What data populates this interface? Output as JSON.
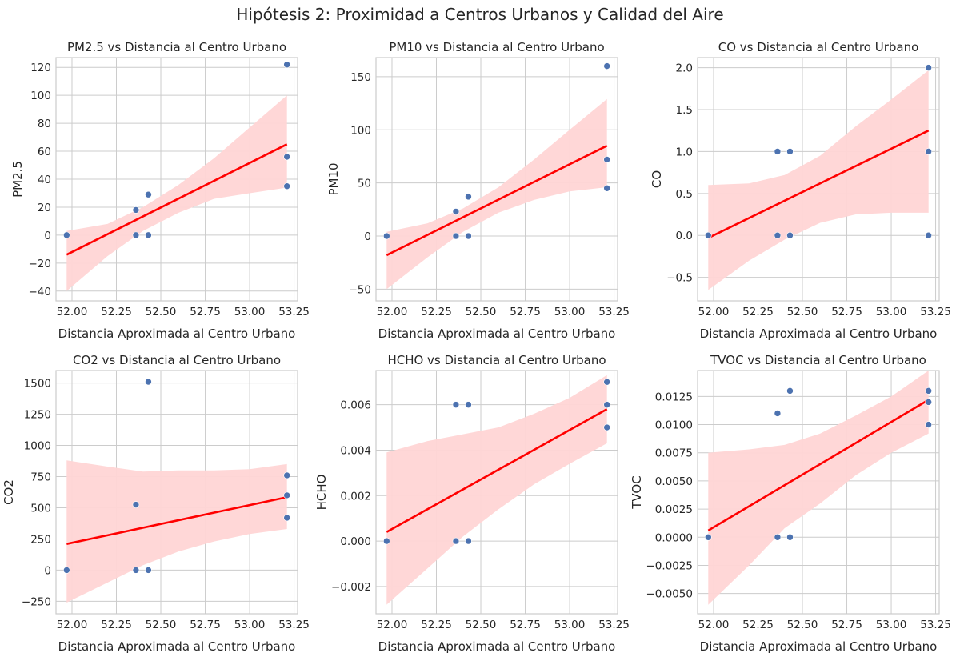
{
  "figure": {
    "suptitle": "Hipótesis 2: Proximidad a Centros Urbanos y Calidad del Aire"
  },
  "colors": {
    "point": "#4c72b0",
    "line": "#ff0000",
    "band": "#ffd5d5",
    "grid": "#cccccc",
    "spine": "#cccccc"
  },
  "chart_data": [
    {
      "type": "scatter",
      "title": "PM2.5 vs Distancia al Centro Urbano",
      "xlabel": "Distancia Aproximada al Centro Urbano",
      "ylabel": "PM2.5",
      "xlim": [
        51.91,
        53.27
      ],
      "xticks": [
        52.0,
        52.25,
        52.5,
        52.75,
        53.0,
        53.25
      ],
      "xticklabels": [
        "52.00",
        "52.25",
        "52.50",
        "52.75",
        "53.00",
        "53.25"
      ],
      "ylim": [
        -47,
        127
      ],
      "yticks": [
        -40,
        -20,
        0,
        20,
        40,
        60,
        80,
        100,
        120
      ],
      "yticklabels": [
        "−40",
        "−20",
        "0",
        "20",
        "40",
        "60",
        "80",
        "100",
        "120"
      ],
      "points": [
        [
          51.97,
          0
        ],
        [
          52.36,
          18
        ],
        [
          52.36,
          0
        ],
        [
          52.43,
          29
        ],
        [
          52.43,
          0
        ],
        [
          53.21,
          122
        ],
        [
          53.21,
          56
        ],
        [
          53.21,
          35
        ]
      ],
      "regression": [
        [
          51.97,
          -14
        ],
        [
          53.21,
          65
        ]
      ],
      "ci_band": {
        "x": [
          51.97,
          52.2,
          52.4,
          52.6,
          52.8,
          53.0,
          53.21
        ],
        "lower": [
          -40,
          -15,
          3,
          16,
          26,
          30,
          34
        ],
        "upper": [
          3,
          8,
          20,
          36,
          55,
          77,
          100
        ]
      },
      "grid": true
    },
    {
      "type": "scatter",
      "title": "PM10 vs Distancia al Centro Urbano",
      "xlabel": "Distancia Aproximada al Centro Urbano",
      "ylabel": "PM10",
      "xlim": [
        51.91,
        53.27
      ],
      "xticks": [
        52.0,
        52.25,
        52.5,
        52.75,
        53.0,
        53.25
      ],
      "xticklabels": [
        "52.00",
        "52.25",
        "52.50",
        "52.75",
        "53.00",
        "53.25"
      ],
      "ylim": [
        -61,
        168
      ],
      "yticks": [
        -50,
        0,
        50,
        100,
        150
      ],
      "yticklabels": [
        "−50",
        "0",
        "50",
        "100",
        "150"
      ],
      "points": [
        [
          51.97,
          0
        ],
        [
          52.36,
          23
        ],
        [
          52.36,
          0
        ],
        [
          52.43,
          37
        ],
        [
          52.43,
          0
        ],
        [
          53.21,
          160
        ],
        [
          53.21,
          72
        ],
        [
          53.21,
          45
        ]
      ],
      "regression": [
        [
          51.97,
          -18
        ],
        [
          53.21,
          85
        ]
      ],
      "ci_band": {
        "x": [
          51.97,
          52.2,
          52.4,
          52.6,
          52.8,
          53.0,
          53.21
        ],
        "lower": [
          -50,
          -20,
          4,
          22,
          34,
          42,
          46
        ],
        "upper": [
          4,
          12,
          26,
          46,
          72,
          100,
          129
        ]
      },
      "grid": true
    },
    {
      "type": "scatter",
      "title": "CO vs Distancia al Centro Urbano",
      "xlabel": "Distancia Aproximada al Centro Urbano",
      "ylabel": "CO",
      "xlim": [
        51.91,
        53.27
      ],
      "xticks": [
        52.0,
        52.25,
        52.5,
        52.75,
        53.0,
        53.25
      ],
      "xticklabels": [
        "52.00",
        "52.25",
        "52.50",
        "52.75",
        "53.00",
        "53.25"
      ],
      "ylim": [
        -0.78,
        2.12
      ],
      "yticks": [
        -0.5,
        0.0,
        0.5,
        1.0,
        1.5,
        2.0
      ],
      "yticklabels": [
        "−0.5",
        "0.0",
        "0.5",
        "1.0",
        "1.5",
        "2.0"
      ],
      "points": [
        [
          51.97,
          0
        ],
        [
          52.36,
          1
        ],
        [
          52.36,
          0
        ],
        [
          52.43,
          1
        ],
        [
          52.43,
          0
        ],
        [
          53.21,
          2
        ],
        [
          53.21,
          1
        ],
        [
          53.21,
          0
        ]
      ],
      "regression": [
        [
          51.97,
          -0.03
        ],
        [
          53.21,
          1.25
        ]
      ],
      "ci_band": {
        "x": [
          51.97,
          52.2,
          52.4,
          52.6,
          52.8,
          53.0,
          53.21
        ],
        "lower": [
          -0.65,
          -0.3,
          -0.05,
          0.15,
          0.25,
          0.27,
          0.27
        ],
        "upper": [
          0.6,
          0.62,
          0.72,
          0.95,
          1.3,
          1.62,
          1.97
        ]
      },
      "grid": true
    },
    {
      "type": "scatter",
      "title": "CO2 vs Distancia al Centro Urbano",
      "xlabel": "Distancia Aproximada al Centro Urbano",
      "ylabel": "CO2",
      "xlim": [
        51.91,
        53.27
      ],
      "xticks": [
        52.0,
        52.25,
        52.5,
        52.75,
        53.0,
        53.25
      ],
      "xticklabels": [
        "52.00",
        "52.25",
        "52.50",
        "52.75",
        "53.00",
        "53.25"
      ],
      "ylim": [
        -350,
        1600
      ],
      "yticks": [
        -250,
        0,
        250,
        500,
        750,
        1000,
        1250,
        1500
      ],
      "yticklabels": [
        "−250",
        "0",
        "250",
        "500",
        "750",
        "1000",
        "1250",
        "1500"
      ],
      "points": [
        [
          51.97,
          0
        ],
        [
          52.36,
          525
        ],
        [
          52.36,
          0
        ],
        [
          52.43,
          1510
        ],
        [
          52.43,
          0
        ],
        [
          53.21,
          760
        ],
        [
          53.21,
          600
        ],
        [
          53.21,
          420
        ]
      ],
      "regression": [
        [
          51.97,
          210
        ],
        [
          53.21,
          585
        ]
      ],
      "ci_band": {
        "x": [
          51.97,
          52.2,
          52.4,
          52.6,
          52.8,
          53.0,
          53.21
        ],
        "lower": [
          -260,
          -100,
          40,
          150,
          230,
          290,
          330
        ],
        "upper": [
          880,
          830,
          790,
          800,
          800,
          810,
          850
        ]
      },
      "grid": true
    },
    {
      "type": "scatter",
      "title": "HCHO vs Distancia al Centro Urbano",
      "xlabel": "Distancia Aproximada al Centro Urbano",
      "ylabel": "HCHO",
      "xlim": [
        51.91,
        53.27
      ],
      "xticks": [
        52.0,
        52.25,
        52.5,
        52.75,
        53.0,
        53.25
      ],
      "xticklabels": [
        "52.00",
        "52.25",
        "52.50",
        "52.75",
        "53.00",
        "53.25"
      ],
      "ylim": [
        -0.0032,
        0.0075
      ],
      "yticks": [
        -0.002,
        0.0,
        0.002,
        0.004,
        0.006
      ],
      "yticklabels": [
        "−0.002",
        "0.000",
        "0.002",
        "0.004",
        "0.006"
      ],
      "points": [
        [
          51.97,
          0
        ],
        [
          52.36,
          0.006
        ],
        [
          52.36,
          0
        ],
        [
          52.43,
          0.006
        ],
        [
          52.43,
          0
        ],
        [
          53.21,
          0.007
        ],
        [
          53.21,
          0.006
        ],
        [
          53.21,
          0.005
        ]
      ],
      "regression": [
        [
          51.97,
          0.0004
        ],
        [
          53.21,
          0.0058
        ]
      ],
      "ci_band": {
        "x": [
          51.97,
          52.2,
          52.4,
          52.6,
          52.8,
          53.0,
          53.21
        ],
        "lower": [
          -0.0028,
          -0.0012,
          0.0002,
          0.0014,
          0.0025,
          0.0034,
          0.0043
        ],
        "upper": [
          0.0039,
          0.0044,
          0.0047,
          0.005,
          0.0056,
          0.0063,
          0.0073
        ]
      },
      "grid": true
    },
    {
      "type": "scatter",
      "title": "TVOC vs Distancia al Centro Urbano",
      "xlabel": "Distancia Aproximada al Centro Urbano",
      "ylabel": "TVOC",
      "xlim": [
        51.91,
        53.27
      ],
      "xticks": [
        52.0,
        52.25,
        52.5,
        52.75,
        53.0,
        53.25
      ],
      "xticklabels": [
        "52.00",
        "52.25",
        "52.50",
        "52.75",
        "53.00",
        "53.25"
      ],
      "ylim": [
        -0.0068,
        0.0148
      ],
      "yticks": [
        -0.005,
        -0.0025,
        0.0,
        0.0025,
        0.005,
        0.0075,
        0.01,
        0.0125
      ],
      "yticklabels": [
        "−0.0050",
        "−0.0025",
        "0.0000",
        "0.0025",
        "0.0050",
        "0.0075",
        "0.0100",
        "0.0125"
      ],
      "points": [
        [
          51.97,
          0
        ],
        [
          52.36,
          0.011
        ],
        [
          52.36,
          0
        ],
        [
          52.43,
          0.013
        ],
        [
          52.43,
          0
        ],
        [
          53.21,
          0.013
        ],
        [
          53.21,
          0.012
        ],
        [
          53.21,
          0.01
        ]
      ],
      "regression": [
        [
          51.97,
          0.0006
        ],
        [
          53.21,
          0.0122
        ]
      ],
      "ci_band": {
        "x": [
          51.97,
          52.2,
          52.4,
          52.6,
          52.8,
          53.0,
          53.21
        ],
        "lower": [
          -0.006,
          -0.0025,
          0.0008,
          0.003,
          0.0055,
          0.0075,
          0.0092
        ],
        "upper": [
          0.0075,
          0.0078,
          0.0082,
          0.0092,
          0.0108,
          0.0125,
          0.0148
        ]
      },
      "grid": true
    }
  ]
}
